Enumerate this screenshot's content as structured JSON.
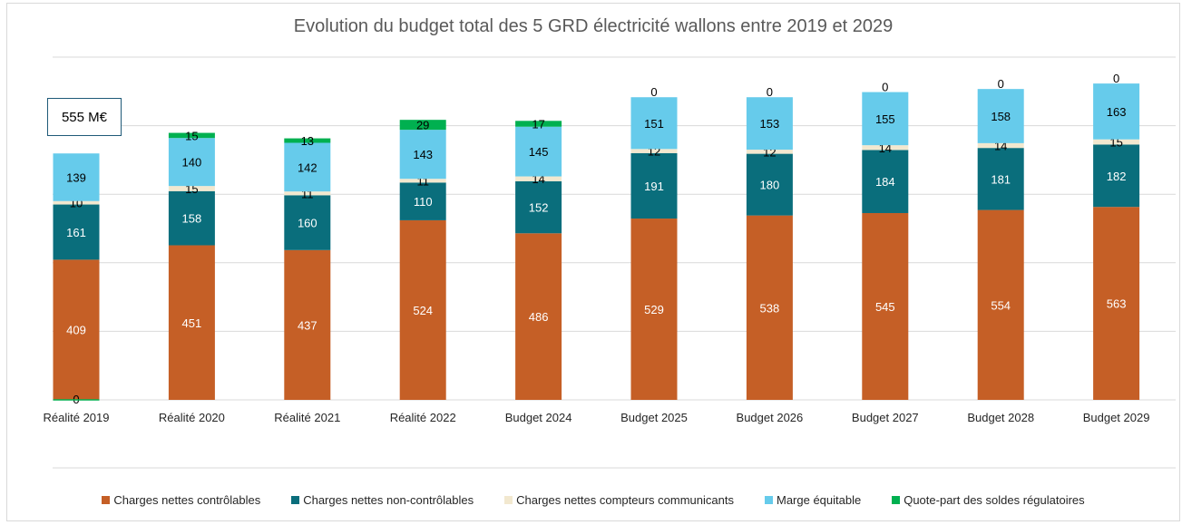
{
  "chart_data": {
    "type": "bar",
    "stacked": true,
    "title": "Evolution du budget total des 5 GRD électricité wallons entre 2019 et 2029",
    "xlabel": "",
    "ylabel": "",
    "ylim": [
      0,
      1000
    ],
    "grid": true,
    "y_axis_labels_visible": false,
    "legend_position": "bottom",
    "categories": [
      "Réalité 2019",
      "Réalité 2020",
      "Réalité 2021",
      "Réalité 2022",
      "Budget 2024",
      "Budget 2025",
      "Budget 2026",
      "Budget 2027",
      "Budget 2028",
      "Budget 2029"
    ],
    "series": [
      {
        "name": "Charges nettes contrôlables",
        "color": "#c55f26",
        "label_color": "#ffffff",
        "values": [
          409,
          451,
          437,
          524,
          486,
          529,
          538,
          545,
          554,
          563
        ]
      },
      {
        "name": "Charges nettes non-contrôlables",
        "color": "#0a6e7c",
        "label_color": "#ffffff",
        "values": [
          161,
          158,
          160,
          110,
          152,
          191,
          180,
          184,
          181,
          182
        ]
      },
      {
        "name": "Charges nettes compteurs communicants",
        "color": "#f2e8cf",
        "label_color": "#000000",
        "values": [
          10,
          15,
          11,
          11,
          14,
          12,
          12,
          14,
          14,
          15
        ]
      },
      {
        "name": "Marge équitable",
        "color": "#66cbeb",
        "label_color": "#000000",
        "values": [
          139,
          140,
          142,
          143,
          145,
          151,
          153,
          155,
          158,
          163
        ]
      },
      {
        "name": "Quote-part des soldes régulatoires",
        "color": "#00b050",
        "label_color": "#000000",
        "values": [
          0,
          15,
          13,
          29,
          17,
          0,
          0,
          0,
          0,
          0
        ]
      }
    ],
    "annotations": [
      "555 M€"
    ]
  },
  "annotation_box": {
    "text": "555 M€"
  }
}
